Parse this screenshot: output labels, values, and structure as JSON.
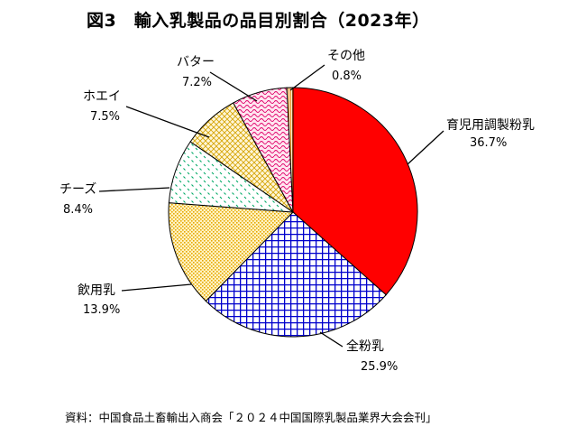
{
  "title": "図3　輸入乳製品の品目別割合（2023年）",
  "source": "資料：中国食品土畜輸出入商会「２０２４中国国際乳製品業界大会会刊」",
  "chart_data": {
    "type": "pie",
    "title": "図3　輸入乳製品の品目別割合（2023年）",
    "slices": [
      {
        "label": "育児用調製粉乳",
        "value": 36.7,
        "pct_text": "36.7%",
        "color": "#ff0000",
        "pattern": "solid"
      },
      {
        "label": "全粉乳",
        "value": 25.9,
        "pct_text": "25.9%",
        "color": "#0000cc",
        "pattern": "grid"
      },
      {
        "label": "飲用乳",
        "value": 13.9,
        "pct_text": "13.9%",
        "color": "#e6a800",
        "pattern": "dots"
      },
      {
        "label": "チーズ",
        "value": 8.4,
        "pct_text": "8.4%",
        "color": "#00aa66",
        "pattern": "dash"
      },
      {
        "label": "ホエイ",
        "value": 7.5,
        "pct_text": "7.5%",
        "color": "#d4a200",
        "pattern": "crosshatch"
      },
      {
        "label": "バター",
        "value": 7.2,
        "pct_text": "7.2%",
        "color": "#e0006a",
        "pattern": "wave"
      },
      {
        "label": "その他",
        "value": 0.8,
        "pct_text": "0.8%",
        "color": "#e08000",
        "pattern": "vline"
      }
    ]
  }
}
